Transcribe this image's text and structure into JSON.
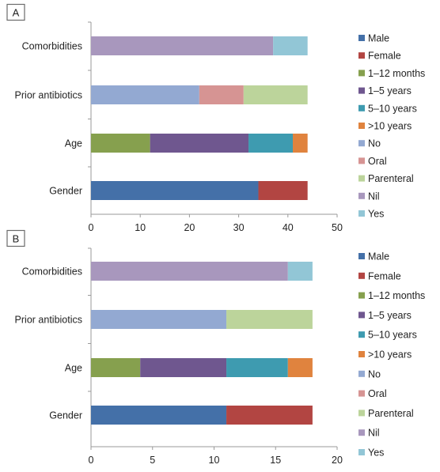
{
  "chart_data": [
    {
      "type": "bar",
      "orientation": "horizontal",
      "stacked": true,
      "panel_label": "A",
      "categories": [
        "Gender",
        "Age",
        "Prior antibiotics",
        "Comorbidities"
      ],
      "xlim": [
        0,
        50
      ],
      "xticks": [
        0,
        10,
        20,
        30,
        40,
        50
      ],
      "grid": false,
      "legend_position": "right",
      "series": [
        {
          "name": "Male",
          "color": "#4470a8",
          "values": [
            34,
            0,
            0,
            0
          ]
        },
        {
          "name": "Female",
          "color": "#b24542",
          "values": [
            10,
            0,
            0,
            0
          ]
        },
        {
          "name": "1–12 months",
          "color": "#86a04e",
          "values": [
            0,
            12,
            0,
            0
          ]
        },
        {
          "name": "1–5 years",
          "color": "#6f578f",
          "values": [
            0,
            20,
            0,
            0
          ]
        },
        {
          "name": "5–10 years",
          "color": "#3e9bb0",
          "values": [
            0,
            9,
            0,
            0
          ]
        },
        {
          "name": ">10 years",
          "color": "#e0833e",
          "values": [
            0,
            3,
            0,
            0
          ]
        },
        {
          "name": "No",
          "color": "#93a9d2",
          "values": [
            0,
            0,
            22,
            0
          ]
        },
        {
          "name": "Oral",
          "color": "#d69493",
          "values": [
            0,
            0,
            9,
            0
          ]
        },
        {
          "name": "Parenteral",
          "color": "#bcd49b",
          "values": [
            0,
            0,
            13,
            0
          ]
        },
        {
          "name": "Nil",
          "color": "#a897bd",
          "values": [
            0,
            0,
            0,
            37
          ]
        },
        {
          "name": "Yes",
          "color": "#92c6d6",
          "values": [
            0,
            0,
            0,
            7
          ]
        }
      ]
    },
    {
      "type": "bar",
      "orientation": "horizontal",
      "stacked": true,
      "panel_label": "B",
      "categories": [
        "Gender",
        "Age",
        "Prior antibiotics",
        "Comorbidities"
      ],
      "xlim": [
        0,
        20
      ],
      "xticks": [
        0,
        5,
        10,
        15,
        20
      ],
      "grid": false,
      "legend_position": "right",
      "series": [
        {
          "name": "Male",
          "color": "#4470a8",
          "values": [
            11,
            0,
            0,
            0
          ]
        },
        {
          "name": "Female",
          "color": "#b24542",
          "values": [
            7,
            0,
            0,
            0
          ]
        },
        {
          "name": "1–12 months",
          "color": "#86a04e",
          "values": [
            0,
            4,
            0,
            0
          ]
        },
        {
          "name": "1–5 years",
          "color": "#6f578f",
          "values": [
            0,
            7,
            0,
            0
          ]
        },
        {
          "name": "5–10 years",
          "color": "#3e9bb0",
          "values": [
            0,
            5,
            0,
            0
          ]
        },
        {
          "name": ">10 years",
          "color": "#e0833e",
          "values": [
            0,
            2,
            0,
            0
          ]
        },
        {
          "name": "No",
          "color": "#93a9d2",
          "values": [
            0,
            0,
            11,
            0
          ]
        },
        {
          "name": "Oral",
          "color": "#d69493",
          "values": [
            0,
            0,
            0,
            0
          ]
        },
        {
          "name": "Parenteral",
          "color": "#bcd49b",
          "values": [
            0,
            0,
            7,
            0
          ]
        },
        {
          "name": "Nil",
          "color": "#a897bd",
          "values": [
            0,
            0,
            0,
            16
          ]
        },
        {
          "name": "Yes",
          "color": "#92c6d6",
          "values": [
            0,
            0,
            0,
            2
          ]
        }
      ]
    }
  ]
}
